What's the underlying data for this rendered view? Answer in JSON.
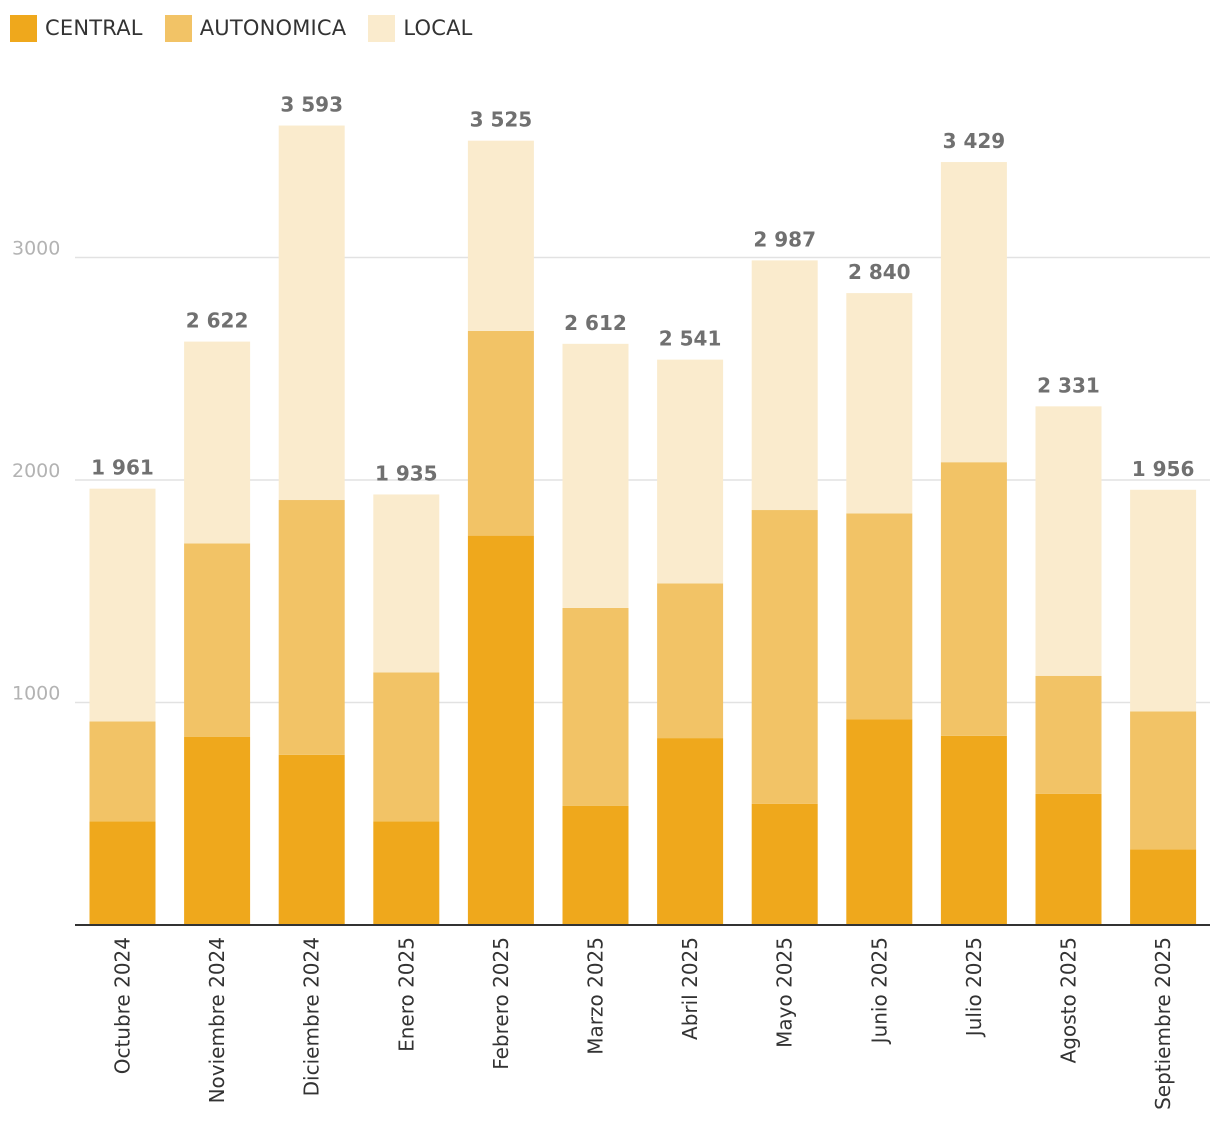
{
  "chart_data": {
    "type": "bar",
    "stacked": true,
    "title": "",
    "xlabel": "",
    "ylabel": "",
    "ylim": [
      0,
      3800
    ],
    "yticks": [
      1000,
      2000,
      3000
    ],
    "grid": true,
    "legend_position": "top-left",
    "categories": [
      "Octubre 2024",
      "Noviembre 2024",
      "Diciembre 2024",
      "Enero 2025",
      "Febrero 2025",
      "Marzo 2025",
      "Abril 2025",
      "Mayo 2025",
      "Junio 2025",
      "Julio 2025",
      "Agosto 2025",
      "Septiembre 2025"
    ],
    "series": [
      {
        "name": "CENTRAL",
        "color": "#efa81c",
        "values": [
          465,
          845,
          765,
          465,
          1750,
          535,
          840,
          545,
          925,
          850,
          590,
          340
        ]
      },
      {
        "name": "AUTONOMICA",
        "color": "#f2c366",
        "values": [
          450,
          870,
          1145,
          670,
          920,
          890,
          695,
          1320,
          925,
          1230,
          530,
          620
        ]
      },
      {
        "name": "LOCAL",
        "color": "#faebcd",
        "values": [
          1046,
          907,
          1683,
          800,
          855,
          1187,
          1006,
          1122,
          990,
          1349,
          1211,
          996
        ]
      }
    ],
    "totals": [
      1961,
      2622,
      3593,
      1935,
      3525,
      2612,
      2541,
      2987,
      2840,
      3429,
      2331,
      1956
    ],
    "total_labels": [
      "1 961",
      "2 622",
      "3 593",
      "1 935",
      "3 525",
      "2 612",
      "2 541",
      "2 987",
      "2 840",
      "3 429",
      "2 331",
      "1 956"
    ]
  }
}
